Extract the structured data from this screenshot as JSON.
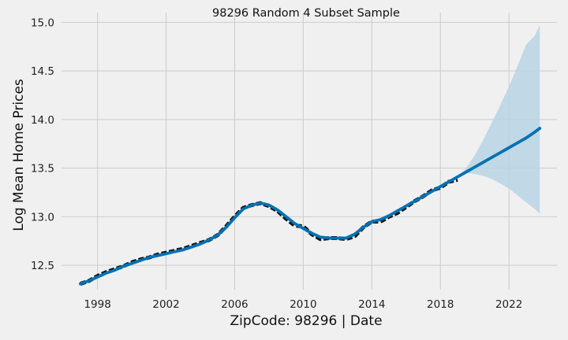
{
  "chart_data": {
    "type": "line",
    "title": "98296 Random 4 Subset Sample",
    "xlabel": "ZipCode: 98296 | Date",
    "ylabel": "Log Mean Home Prices",
    "xlim": [
      1995.9,
      2024.8
    ],
    "ylim": [
      12.25,
      15.1
    ],
    "x_ticks": [
      1998,
      2002,
      2006,
      2010,
      2014,
      2018,
      2022
    ],
    "y_ticks": [
      12.5,
      13.0,
      13.5,
      14.0,
      14.5,
      15.0
    ],
    "x_tick_labels": [
      "1998",
      "2002",
      "2006",
      "2010",
      "2014",
      "2018",
      "2022"
    ],
    "y_tick_labels": [
      "12.5",
      "13.0",
      "13.5",
      "14.0",
      "14.5",
      "15.0"
    ],
    "grid": true,
    "colors": {
      "background": "#f0f0f0",
      "grid": "#cbcbcb",
      "forecast": "#0072b2",
      "interval": "#b9d4e4",
      "observed": "#111111"
    },
    "series": [
      {
        "role": "observed",
        "style": "dashed",
        "x": [
          1997.0,
          1997.5,
          1998.0,
          1998.5,
          1999.0,
          1999.5,
          2000.0,
          2000.5,
          2001.0,
          2001.5,
          2002.0,
          2002.5,
          2003.0,
          2003.5,
          2004.0,
          2004.5,
          2005.0,
          2005.5,
          2006.0,
          2006.5,
          2007.0,
          2007.5,
          2008.0,
          2008.5,
          2009.0,
          2009.5,
          2010.0,
          2010.5,
          2011.0,
          2011.5,
          2012.0,
          2012.5,
          2013.0,
          2013.5,
          2014.0,
          2014.5,
          2015.0,
          2015.5,
          2016.0,
          2016.5,
          2017.0,
          2017.5,
          2018.0,
          2018.5,
          2019.0
        ],
        "y": [
          12.31,
          12.34,
          12.39,
          12.43,
          12.46,
          12.49,
          12.53,
          12.56,
          12.58,
          12.61,
          12.63,
          12.65,
          12.67,
          12.7,
          12.73,
          12.76,
          12.81,
          12.9,
          13.0,
          13.09,
          13.12,
          13.14,
          13.11,
          13.06,
          12.98,
          12.91,
          12.9,
          12.82,
          12.77,
          12.78,
          12.78,
          12.77,
          12.8,
          12.89,
          12.95,
          12.95,
          13.0,
          13.04,
          13.1,
          13.16,
          13.21,
          13.27,
          13.3,
          13.36,
          13.38
        ]
      },
      {
        "role": "forecast",
        "style": "solid",
        "x": [
          1997.0,
          1997.5,
          1998.0,
          1998.5,
          1999.0,
          1999.5,
          2000.0,
          2000.5,
          2001.0,
          2001.5,
          2002.0,
          2002.5,
          2003.0,
          2003.5,
          2004.0,
          2004.5,
          2005.0,
          2005.5,
          2006.0,
          2006.5,
          2007.0,
          2007.5,
          2008.0,
          2008.5,
          2009.0,
          2009.5,
          2010.0,
          2010.5,
          2011.0,
          2011.5,
          2012.0,
          2012.5,
          2013.0,
          2013.5,
          2014.0,
          2014.5,
          2015.0,
          2015.5,
          2016.0,
          2016.5,
          2017.0,
          2017.5,
          2018.0,
          2018.5,
          2019.0,
          2019.5,
          2020.0,
          2020.5,
          2021.0,
          2021.5,
          2022.0,
          2022.5,
          2023.0,
          2023.5,
          2023.8
        ],
        "y": [
          12.31,
          12.34,
          12.38,
          12.42,
          12.45,
          12.49,
          12.52,
          12.55,
          12.58,
          12.6,
          12.62,
          12.64,
          12.66,
          12.69,
          12.72,
          12.76,
          12.81,
          12.89,
          12.99,
          13.08,
          13.12,
          13.14,
          13.12,
          13.07,
          13.0,
          12.93,
          12.88,
          12.83,
          12.79,
          12.78,
          12.78,
          12.78,
          12.82,
          12.89,
          12.95,
          12.97,
          13.01,
          13.06,
          13.11,
          13.16,
          13.21,
          13.26,
          13.31,
          13.36,
          13.41,
          13.46,
          13.51,
          13.56,
          13.61,
          13.66,
          13.71,
          13.76,
          13.81,
          13.87,
          13.91
        ]
      }
    ],
    "interval": {
      "x": [
        2019.0,
        2019.5,
        2020.0,
        2020.5,
        2021.0,
        2021.5,
        2022.0,
        2022.5,
        2023.0,
        2023.5,
        2023.8
      ],
      "lower": [
        13.41,
        13.45,
        13.44,
        13.42,
        13.39,
        13.34,
        13.29,
        13.22,
        13.15,
        13.08,
        13.03
      ],
      "upper": [
        13.41,
        13.5,
        13.63,
        13.79,
        13.97,
        14.15,
        14.34,
        14.55,
        14.77,
        14.86,
        14.97
      ]
    }
  }
}
